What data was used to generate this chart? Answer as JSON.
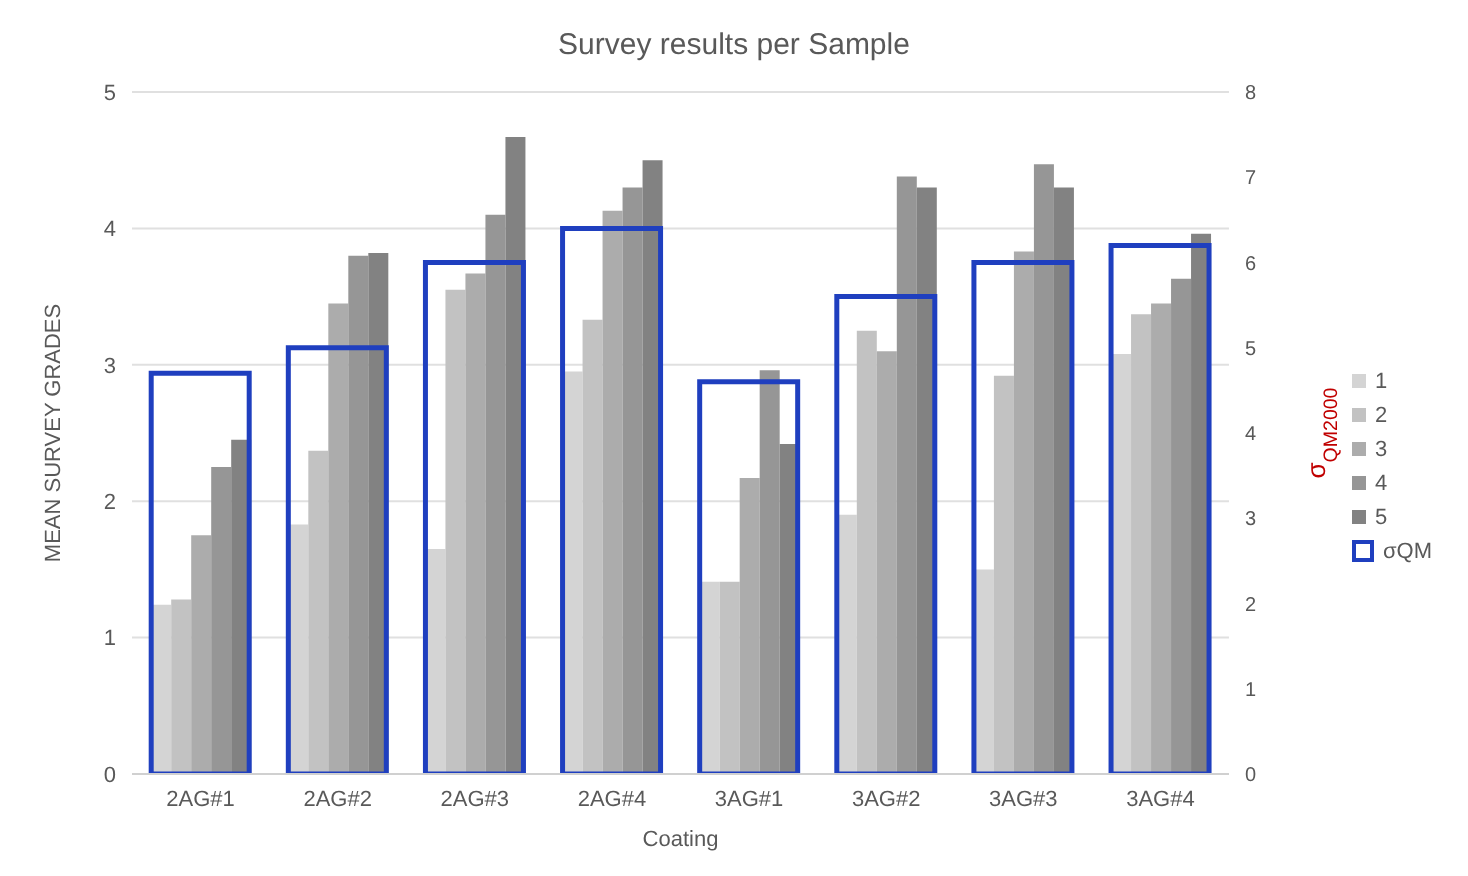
{
  "chart_data": {
    "type": "bar",
    "title": "Survey results per Sample",
    "xlabel": "Coating",
    "ylabel": "MEAN SURVEY GRADES",
    "y2label": "σ$_{QM2000}$",
    "categories": [
      "2AG#1",
      "2AG#2",
      "2AG#3",
      "2AG#4",
      "3AG#1",
      "3AG#2",
      "3AG#3",
      "3AG#4"
    ],
    "series": [
      {
        "name": "1",
        "color": "#d4d4d4",
        "values": [
          1.24,
          1.83,
          1.65,
          2.95,
          1.41,
          1.9,
          1.5,
          3.08
        ]
      },
      {
        "name": "2",
        "color": "#c2c2c2",
        "values": [
          1.28,
          2.37,
          3.55,
          3.33,
          1.41,
          3.25,
          2.92,
          3.37
        ]
      },
      {
        "name": "3",
        "color": "#acacac",
        "values": [
          1.75,
          3.45,
          3.67,
          4.13,
          2.17,
          3.1,
          3.83,
          3.45
        ]
      },
      {
        "name": "4",
        "color": "#969696",
        "values": [
          2.25,
          3.8,
          4.1,
          4.3,
          2.96,
          4.38,
          4.47,
          3.63
        ]
      },
      {
        "name": "5",
        "color": "#828282",
        "values": [
          2.45,
          3.82,
          4.67,
          4.5,
          2.42,
          4.3,
          4.3,
          3.96
        ]
      },
      {
        "name": "σQM",
        "color": "#1f3fbf",
        "axis": "y2",
        "values": [
          4.7,
          5.0,
          6.0,
          6.4,
          4.6,
          5.6,
          6.0,
          6.2
        ]
      }
    ],
    "ylim": [
      0,
      5
    ],
    "yticks": [
      0,
      1,
      2,
      3,
      4,
      5
    ],
    "y2lim": [
      0,
      8
    ],
    "y2ticks": [
      0,
      1,
      2,
      3,
      4,
      5,
      6,
      7,
      8
    ],
    "grid": "y",
    "legend": "right"
  }
}
